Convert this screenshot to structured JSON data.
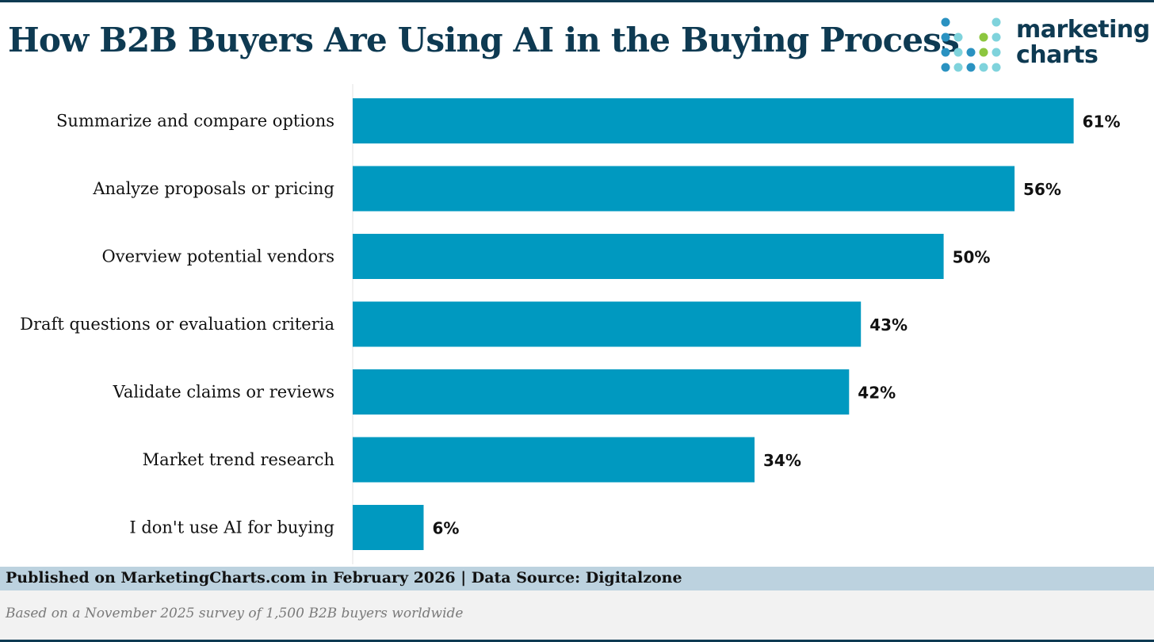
{
  "header": {
    "title": "How B2B Buyers Are Using AI in the Buying Process",
    "logo_line1": "marketing",
    "logo_line2": "charts"
  },
  "colors": {
    "bar": "#0099c0",
    "title": "#0e3a52",
    "logo_dots": [
      "#2a92c1",
      "#7fd3dc",
      "#8cc63f"
    ]
  },
  "chart_data": {
    "type": "bar",
    "orientation": "horizontal",
    "title": "How B2B Buyers Are Using AI in the Buying Process",
    "categories": [
      "Summarize and compare options",
      "Analyze proposals or pricing",
      "Overview potential vendors",
      "Draft questions or evaluation criteria",
      "Validate claims or reviews",
      "Market trend research",
      "I don't use AI for buying"
    ],
    "values": [
      61,
      56,
      50,
      43,
      42,
      34,
      6
    ],
    "value_labels": [
      "61%",
      "56%",
      "50%",
      "43%",
      "42%",
      "34%",
      "6%"
    ],
    "unit": "%",
    "xlim": [
      0,
      68
    ],
    "xlabel": "",
    "ylabel": "",
    "grid": false
  },
  "footer": {
    "published": "Published on MarketingCharts.com in February 2026 | Data Source: Digitalzone",
    "note": "Based on a November 2025 survey of 1,500 B2B buyers worldwide"
  }
}
